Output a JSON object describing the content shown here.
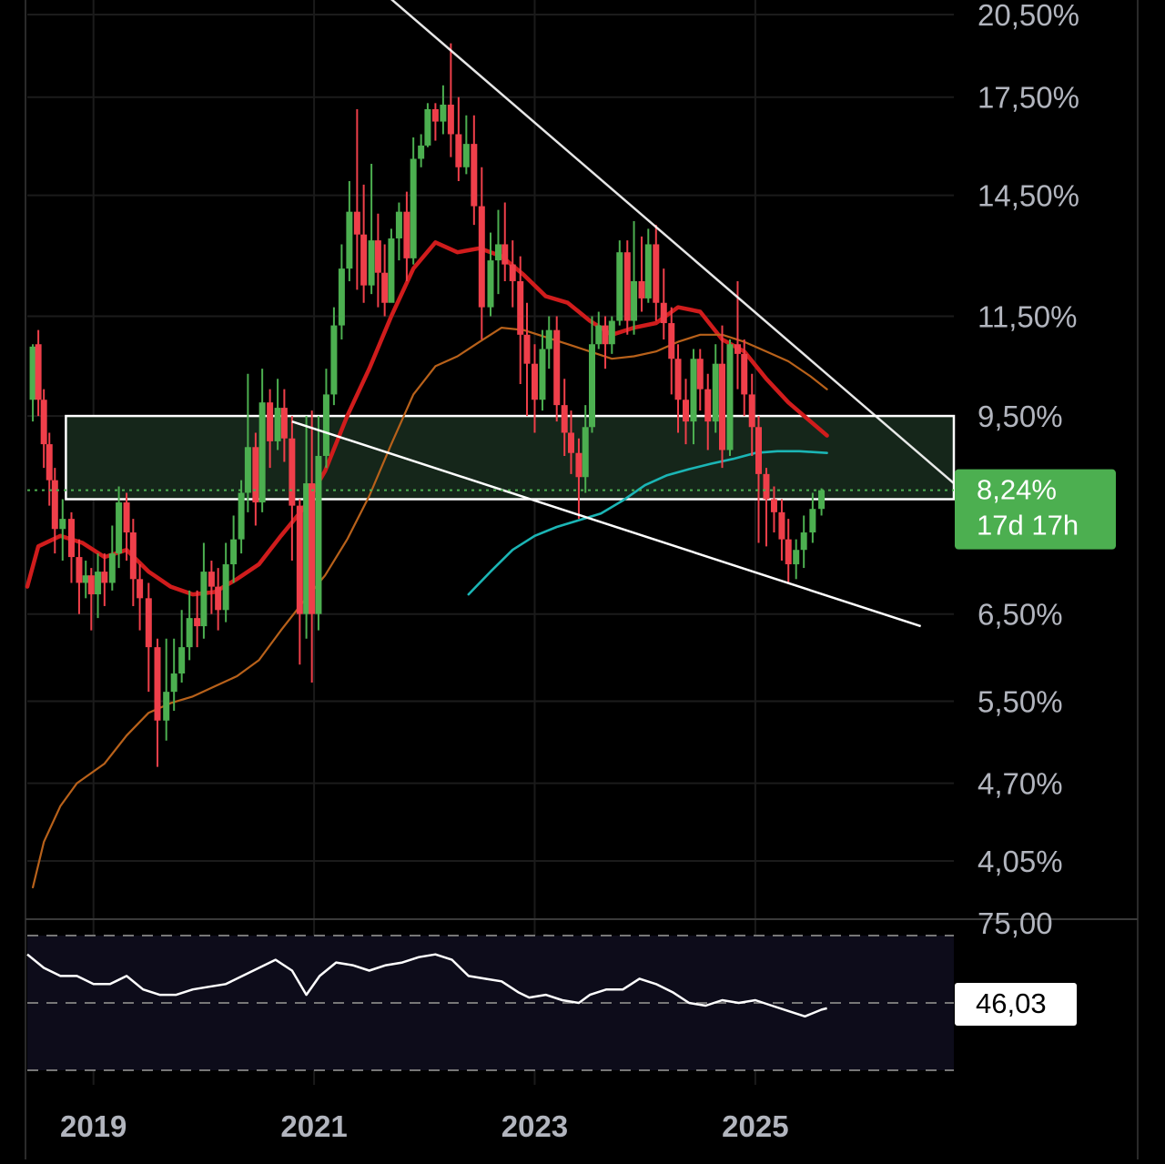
{
  "chart_data": {
    "type": "candlestick",
    "title": "",
    "ylabel": "",
    "price_axis": {
      "scale": "log",
      "range": [
        3.8,
        20.5
      ],
      "ticks": [
        "20,50%",
        "17,50%",
        "14,50%",
        "11,50%",
        "9,50%",
        "6,50%",
        "5,50%",
        "4,70%",
        "4,05%"
      ],
      "tick_values": [
        20.5,
        17.5,
        14.5,
        11.5,
        9.5,
        6.5,
        5.5,
        4.7,
        4.05
      ]
    },
    "time_axis": {
      "range": [
        2018.4,
        2026.8
      ],
      "ticks": [
        "2019",
        "2021",
        "2023",
        "2025"
      ],
      "tick_values": [
        2019.0,
        2021.0,
        2023.0,
        2025.0
      ]
    },
    "current": {
      "value": 8.24,
      "label": "8,24%",
      "countdown": "17d 17h",
      "color": "#4caf50"
    },
    "zone": {
      "low": 8.1,
      "high": 9.5,
      "start": 2018.75,
      "end": 2026.8
    },
    "trendlines": [
      {
        "name": "",
        "points": [
          [
            2021.6,
            21.5
          ],
          [
            2026.8,
            8.35
          ]
        ]
      },
      {
        "name": "",
        "points": [
          [
            2020.8,
            9.4
          ],
          [
            2026.5,
            6.35
          ]
        ]
      }
    ],
    "ma_lines": [
      {
        "color": "#d01c1c",
        "points": [
          [
            2018.4,
            6.85
          ],
          [
            2018.5,
            7.4
          ],
          [
            2018.7,
            7.55
          ],
          [
            2018.9,
            7.45
          ],
          [
            2019.1,
            7.25
          ],
          [
            2019.3,
            7.35
          ],
          [
            2019.5,
            7.05
          ],
          [
            2019.7,
            6.85
          ],
          [
            2019.9,
            6.75
          ],
          [
            2020.1,
            6.78
          ],
          [
            2020.3,
            6.95
          ],
          [
            2020.5,
            7.15
          ],
          [
            2020.7,
            7.55
          ],
          [
            2020.9,
            7.95
          ],
          [
            2021.1,
            8.55
          ],
          [
            2021.3,
            9.5
          ],
          [
            2021.5,
            10.4
          ],
          [
            2021.7,
            11.5
          ],
          [
            2021.9,
            12.6
          ],
          [
            2022.1,
            13.25
          ],
          [
            2022.3,
            13.0
          ],
          [
            2022.5,
            13.1
          ],
          [
            2022.7,
            12.9
          ],
          [
            2022.9,
            12.45
          ],
          [
            2023.1,
            11.95
          ],
          [
            2023.3,
            11.8
          ],
          [
            2023.5,
            11.4
          ],
          [
            2023.7,
            11.1
          ],
          [
            2023.9,
            11.25
          ],
          [
            2024.1,
            11.35
          ],
          [
            2024.3,
            11.7
          ],
          [
            2024.5,
            11.6
          ],
          [
            2024.7,
            11.0
          ],
          [
            2024.9,
            10.75
          ],
          [
            2025.1,
            10.2
          ],
          [
            2025.3,
            9.75
          ],
          [
            2025.5,
            9.4
          ],
          [
            2025.65,
            9.15
          ]
        ]
      },
      {
        "color": "#b8611a",
        "points": [
          [
            2018.45,
            3.85
          ],
          [
            2018.55,
            4.2
          ],
          [
            2018.7,
            4.5
          ],
          [
            2018.85,
            4.7
          ],
          [
            2019.1,
            4.88
          ],
          [
            2019.3,
            5.15
          ],
          [
            2019.5,
            5.38
          ],
          [
            2019.7,
            5.48
          ],
          [
            2019.9,
            5.55
          ],
          [
            2020.1,
            5.66
          ],
          [
            2020.3,
            5.77
          ],
          [
            2020.5,
            5.95
          ],
          [
            2020.7,
            6.3
          ],
          [
            2020.9,
            6.65
          ],
          [
            2021.1,
            7.0
          ],
          [
            2021.3,
            7.5
          ],
          [
            2021.5,
            8.15
          ],
          [
            2021.7,
            9.0
          ],
          [
            2021.9,
            9.9
          ],
          [
            2022.1,
            10.45
          ],
          [
            2022.3,
            10.65
          ],
          [
            2022.5,
            10.95
          ],
          [
            2022.7,
            11.25
          ],
          [
            2022.9,
            11.2
          ],
          [
            2023.1,
            11.05
          ],
          [
            2023.3,
            10.9
          ],
          [
            2023.5,
            10.75
          ],
          [
            2023.7,
            10.6
          ],
          [
            2023.9,
            10.65
          ],
          [
            2024.1,
            10.75
          ],
          [
            2024.3,
            10.95
          ],
          [
            2024.5,
            11.1
          ],
          [
            2024.7,
            11.1
          ],
          [
            2024.9,
            10.95
          ],
          [
            2025.1,
            10.75
          ],
          [
            2025.3,
            10.55
          ],
          [
            2025.5,
            10.25
          ],
          [
            2025.65,
            10.0
          ]
        ]
      },
      {
        "color": "#1bb5b5",
        "points": [
          [
            2022.4,
            6.75
          ],
          [
            2022.6,
            7.05
          ],
          [
            2022.8,
            7.35
          ],
          [
            2023.0,
            7.55
          ],
          [
            2023.2,
            7.68
          ],
          [
            2023.4,
            7.78
          ],
          [
            2023.6,
            7.88
          ],
          [
            2023.8,
            8.08
          ],
          [
            2024.0,
            8.32
          ],
          [
            2024.2,
            8.48
          ],
          [
            2024.4,
            8.58
          ],
          [
            2024.6,
            8.67
          ],
          [
            2024.8,
            8.75
          ],
          [
            2025.0,
            8.85
          ],
          [
            2025.2,
            8.88
          ],
          [
            2025.4,
            8.88
          ],
          [
            2025.65,
            8.85
          ]
        ]
      }
    ],
    "candles": [
      [
        2018.45,
        9.8,
        10.85,
        9.4,
        10.9
      ],
      [
        2018.5,
        10.9,
        9.8,
        9.5,
        11.2
      ],
      [
        2018.55,
        9.8,
        9.0,
        8.6,
        10.0
      ],
      [
        2018.6,
        9.0,
        8.4,
        8.0,
        9.2
      ],
      [
        2018.65,
        8.4,
        7.65,
        7.3,
        8.6
      ],
      [
        2018.72,
        7.65,
        7.8,
        7.2,
        8.1
      ],
      [
        2018.8,
        7.8,
        7.25,
        6.9,
        7.9
      ],
      [
        2018.87,
        7.25,
        6.9,
        6.5,
        7.5
      ],
      [
        2018.93,
        6.9,
        7.0,
        6.7,
        7.2
      ],
      [
        2018.98,
        7.0,
        6.75,
        6.3,
        7.1
      ],
      [
        2019.04,
        6.75,
        7.05,
        6.45,
        7.3
      ],
      [
        2019.1,
        7.05,
        6.9,
        6.6,
        7.3
      ],
      [
        2019.17,
        6.9,
        7.3,
        6.8,
        7.7
      ],
      [
        2019.23,
        7.3,
        8.05,
        7.1,
        8.3
      ],
      [
        2019.3,
        8.05,
        7.6,
        7.2,
        8.2
      ],
      [
        2019.36,
        7.6,
        6.95,
        6.6,
        7.8
      ],
      [
        2019.42,
        6.95,
        6.7,
        6.3,
        7.15
      ],
      [
        2019.5,
        6.7,
        6.1,
        5.6,
        6.9
      ],
      [
        2019.58,
        6.1,
        5.3,
        4.85,
        6.2
      ],
      [
        2019.66,
        5.3,
        5.6,
        5.1,
        6.2
      ],
      [
        2019.73,
        5.6,
        5.8,
        5.4,
        6.2
      ],
      [
        2019.8,
        5.8,
        6.1,
        5.7,
        6.55
      ],
      [
        2019.87,
        6.1,
        6.45,
        5.95,
        6.8
      ],
      [
        2019.94,
        6.45,
        6.35,
        6.1,
        6.8
      ],
      [
        2020.0,
        6.35,
        7.05,
        6.2,
        7.45
      ],
      [
        2020.07,
        7.05,
        6.85,
        6.5,
        7.2
      ],
      [
        2020.13,
        6.85,
        6.55,
        6.3,
        7.1
      ],
      [
        2020.2,
        6.55,
        7.15,
        6.4,
        7.45
      ],
      [
        2020.27,
        7.15,
        7.5,
        6.9,
        7.85
      ],
      [
        2020.34,
        7.5,
        8.2,
        7.3,
        8.4
      ],
      [
        2020.4,
        8.2,
        8.95,
        7.9,
        10.3
      ],
      [
        2020.47,
        8.95,
        8.05,
        7.7,
        9.2
      ],
      [
        2020.53,
        8.05,
        9.75,
        7.9,
        10.4
      ],
      [
        2020.6,
        9.75,
        9.05,
        8.6,
        10.0
      ],
      [
        2020.67,
        9.05,
        9.65,
        8.9,
        10.2
      ],
      [
        2020.73,
        9.65,
        9.1,
        8.7,
        10.0
      ],
      [
        2020.8,
        9.1,
        8.0,
        7.2,
        9.5
      ],
      [
        2020.87,
        8.0,
        6.5,
        5.9,
        8.1
      ],
      [
        2020.93,
        6.5,
        8.35,
        6.2,
        9.5
      ],
      [
        2020.98,
        8.35,
        6.5,
        5.7,
        9.6
      ],
      [
        2021.04,
        6.5,
        8.8,
        6.3,
        9.5
      ],
      [
        2021.11,
        8.8,
        9.9,
        8.6,
        10.4
      ],
      [
        2021.18,
        9.9,
        11.3,
        9.7,
        11.7
      ],
      [
        2021.25,
        11.3,
        12.6,
        11.0,
        13.2
      ],
      [
        2021.32,
        12.6,
        14.05,
        12.3,
        14.9
      ],
      [
        2021.39,
        14.05,
        13.45,
        12.1,
        17.1
      ],
      [
        2021.45,
        13.45,
        12.2,
        11.8,
        14.8
      ],
      [
        2021.52,
        12.2,
        13.3,
        12.0,
        15.4
      ],
      [
        2021.58,
        13.3,
        12.5,
        11.7,
        14.0
      ],
      [
        2021.64,
        12.5,
        11.8,
        11.5,
        13.2
      ],
      [
        2021.7,
        11.8,
        13.35,
        11.9,
        13.6
      ],
      [
        2021.77,
        13.35,
        14.05,
        12.8,
        14.3
      ],
      [
        2021.84,
        14.05,
        12.85,
        12.3,
        14.6
      ],
      [
        2021.9,
        12.85,
        15.55,
        12.7,
        16.2
      ],
      [
        2021.97,
        15.55,
        15.95,
        15.3,
        16.3
      ],
      [
        2022.03,
        15.95,
        17.1,
        15.9,
        17.3
      ],
      [
        2022.1,
        17.1,
        16.7,
        16.1,
        17.3
      ],
      [
        2022.17,
        16.7,
        17.25,
        16.3,
        17.9
      ],
      [
        2022.24,
        17.25,
        16.3,
        15.6,
        19.4
      ],
      [
        2022.31,
        16.3,
        15.3,
        14.9,
        17.5
      ],
      [
        2022.38,
        15.3,
        16.0,
        15.1,
        16.9
      ],
      [
        2022.45,
        16.0,
        14.2,
        13.7,
        16.9
      ],
      [
        2022.52,
        14.2,
        11.7,
        11.0,
        15.3
      ],
      [
        2022.6,
        11.7,
        12.8,
        11.5,
        13.5
      ],
      [
        2022.67,
        12.8,
        13.2,
        12.0,
        14.1
      ],
      [
        2022.73,
        13.2,
        12.7,
        12.3,
        14.3
      ],
      [
        2022.8,
        12.7,
        12.3,
        11.7,
        13.3
      ],
      [
        2022.87,
        12.3,
        11.1,
        10.1,
        12.9
      ],
      [
        2022.93,
        11.1,
        10.5,
        9.5,
        11.8
      ],
      [
        2023.0,
        10.5,
        9.8,
        9.2,
        10.9
      ],
      [
        2023.07,
        9.8,
        10.8,
        9.6,
        11.2
      ],
      [
        2023.13,
        10.8,
        11.2,
        10.4,
        11.5
      ],
      [
        2023.2,
        11.2,
        9.7,
        9.4,
        11.5
      ],
      [
        2023.27,
        9.7,
        9.2,
        8.8,
        10.2
      ],
      [
        2023.33,
        9.2,
        8.85,
        8.5,
        9.6
      ],
      [
        2023.4,
        8.85,
        8.45,
        7.8,
        9.1
      ],
      [
        2023.46,
        8.45,
        9.3,
        8.2,
        9.7
      ],
      [
        2023.52,
        9.3,
        10.9,
        9.2,
        11.5
      ],
      [
        2023.58,
        10.9,
        11.3,
        10.8,
        11.6
      ],
      [
        2023.64,
        11.3,
        10.9,
        10.4,
        11.5
      ],
      [
        2023.7,
        10.9,
        11.4,
        10.7,
        11.5
      ],
      [
        2023.77,
        11.4,
        13.0,
        11.3,
        13.3
      ],
      [
        2023.84,
        13.0,
        11.4,
        11.1,
        13.3
      ],
      [
        2023.9,
        11.4,
        12.3,
        11.1,
        13.8
      ],
      [
        2023.97,
        12.3,
        11.9,
        11.6,
        13.4
      ],
      [
        2024.03,
        11.9,
        13.2,
        11.8,
        13.6
      ],
      [
        2024.1,
        13.2,
        11.8,
        11.4,
        13.7
      ],
      [
        2024.17,
        11.8,
        11.35,
        11.0,
        12.6
      ],
      [
        2024.24,
        11.35,
        10.6,
        9.9,
        11.7
      ],
      [
        2024.3,
        10.6,
        9.8,
        9.2,
        10.9
      ],
      [
        2024.37,
        9.8,
        9.4,
        9.0,
        10.2
      ],
      [
        2024.44,
        9.4,
        10.6,
        9.0,
        10.8
      ],
      [
        2024.5,
        10.6,
        10.0,
        9.6,
        10.8
      ],
      [
        2024.57,
        10.0,
        9.4,
        8.9,
        10.3
      ],
      [
        2024.64,
        9.4,
        10.5,
        9.2,
        10.9
      ],
      [
        2024.7,
        10.5,
        8.9,
        8.6,
        11.3
      ],
      [
        2024.77,
        8.9,
        10.9,
        8.8,
        11.0
      ],
      [
        2024.84,
        10.9,
        10.7,
        10.0,
        12.3
      ],
      [
        2024.9,
        10.7,
        9.9,
        9.5,
        11.0
      ],
      [
        2024.97,
        9.9,
        9.3,
        8.8,
        10.3
      ],
      [
        2025.03,
        9.3,
        8.5,
        7.45,
        9.5
      ],
      [
        2025.1,
        8.5,
        8.1,
        7.4,
        8.6
      ],
      [
        2025.17,
        8.1,
        7.9,
        7.6,
        8.3
      ],
      [
        2025.24,
        7.9,
        7.5,
        7.2,
        8.1
      ],
      [
        2025.3,
        7.5,
        7.15,
        6.9,
        7.8
      ],
      [
        2025.37,
        7.15,
        7.35,
        6.95,
        7.5
      ],
      [
        2025.44,
        7.35,
        7.6,
        7.1,
        7.85
      ],
      [
        2025.52,
        7.6,
        7.95,
        7.45,
        8.2
      ],
      [
        2025.6,
        7.95,
        8.24,
        7.85,
        8.27
      ]
    ],
    "rsi": {
      "level_labels": [
        "75,00"
      ],
      "current": "46,03",
      "line_color": "#ffffff",
      "points": [
        [
          2018.4,
          68
        ],
        [
          2018.55,
          63
        ],
        [
          2018.7,
          60
        ],
        [
          2018.85,
          60
        ],
        [
          2019.0,
          57
        ],
        [
          2019.15,
          57
        ],
        [
          2019.3,
          60
        ],
        [
          2019.45,
          55
        ],
        [
          2019.6,
          53
        ],
        [
          2019.75,
          53
        ],
        [
          2019.9,
          55
        ],
        [
          2020.05,
          56
        ],
        [
          2020.2,
          57
        ],
        [
          2020.35,
          60
        ],
        [
          2020.5,
          63
        ],
        [
          2020.65,
          66
        ],
        [
          2020.8,
          62
        ],
        [
          2020.93,
          53
        ],
        [
          2021.05,
          60
        ],
        [
          2021.2,
          65
        ],
        [
          2021.35,
          64
        ],
        [
          2021.5,
          62
        ],
        [
          2021.65,
          64
        ],
        [
          2021.8,
          65
        ],
        [
          2021.95,
          67
        ],
        [
          2022.1,
          68
        ],
        [
          2022.25,
          66
        ],
        [
          2022.4,
          60
        ],
        [
          2022.55,
          59
        ],
        [
          2022.7,
          58
        ],
        [
          2022.85,
          54
        ],
        [
          2022.95,
          52
        ],
        [
          2023.1,
          53
        ],
        [
          2023.25,
          51
        ],
        [
          2023.4,
          50
        ],
        [
          2023.5,
          53
        ],
        [
          2023.65,
          55
        ],
        [
          2023.8,
          55
        ],
        [
          2023.95,
          59
        ],
        [
          2024.1,
          57
        ],
        [
          2024.25,
          54
        ],
        [
          2024.4,
          50
        ],
        [
          2024.55,
          49
        ],
        [
          2024.7,
          51
        ],
        [
          2024.85,
          50
        ],
        [
          2025.0,
          51
        ],
        [
          2025.15,
          49
        ],
        [
          2025.3,
          47
        ],
        [
          2025.45,
          45
        ],
        [
          2025.6,
          47.5
        ],
        [
          2025.65,
          48
        ]
      ]
    }
  }
}
